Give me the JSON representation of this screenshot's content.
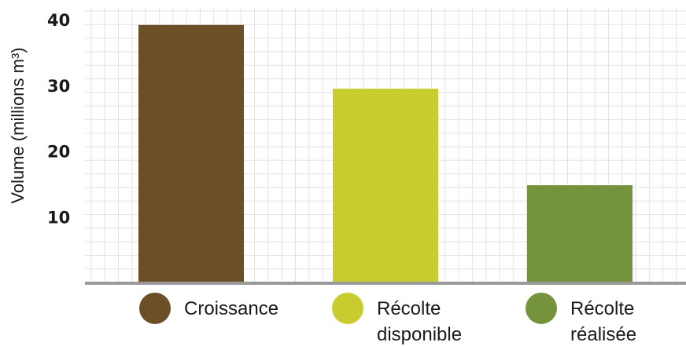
{
  "chart_data": {
    "type": "bar",
    "ylabel": "Volume (millions m³)",
    "ylim": [
      0,
      43
    ],
    "yticks": [
      "10",
      "20",
      "30",
      "40"
    ],
    "ytick_values": [
      10,
      20,
      30,
      40
    ],
    "grid": true,
    "legend_position": "bottom",
    "categories": [
      {
        "name": "Croissance",
        "lines": [
          "Croissance"
        ],
        "color": "#6b4f27",
        "value": 39.2
      },
      {
        "name": "Récolte disponible",
        "lines": [
          "Récolte",
          "disponible"
        ],
        "color": "#c8cc2e",
        "value": 29.5
      },
      {
        "name": "Récolte réalisée",
        "lines": [
          "Récolte",
          "réalisée"
        ],
        "color": "#75933c",
        "value": 14.8
      }
    ],
    "colors": {
      "grid": "#e3e3e3",
      "axis": "#9a9a9a"
    }
  }
}
